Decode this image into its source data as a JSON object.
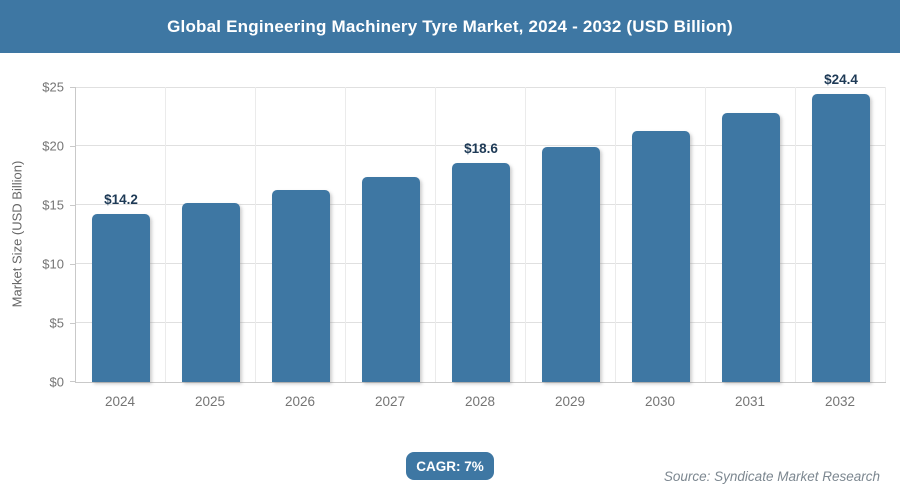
{
  "chart_data": {
    "type": "bar",
    "title": "Global Engineering Machinery Tyre Market, 2024 - 2032 (USD Billion)",
    "categories": [
      "2024",
      "2025",
      "2026",
      "2027",
      "2028",
      "2029",
      "2030",
      "2031",
      "2032"
    ],
    "values": [
      14.2,
      15.2,
      16.3,
      17.4,
      18.6,
      19.9,
      21.3,
      22.8,
      24.4
    ],
    "bar_labels": [
      "$14.2",
      "",
      "",
      "",
      "$18.6",
      "",
      "",
      "",
      "$24.4"
    ],
    "xlabel": "",
    "ylabel": "Market Size (USD Billion)",
    "ylim": [
      0,
      25
    ],
    "yticks": [
      "$0",
      "$5",
      "$10",
      "$15",
      "$20",
      "$25"
    ],
    "grid": true,
    "legend": false
  },
  "footer": {
    "cagr_label": "CAGR: 7%",
    "source": "Source: Syndicate Market Research"
  },
  "colors": {
    "primary": "#3E77A3",
    "bar": "#3E77A3",
    "value_label": "#1E3A56",
    "axis_text": "#757575",
    "grid_horizontal": "#E0E0E0",
    "grid_vertical": "#EBEBEB",
    "axis_line": "#C9C9C9",
    "source_text": "#7C8790",
    "background": "#FFFFFF"
  }
}
